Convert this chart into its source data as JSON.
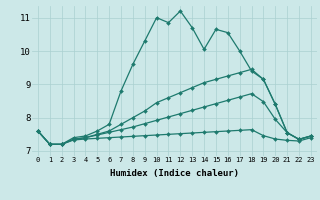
{
  "xlabel": "Humidex (Indice chaleur)",
  "background_color": "#cce8e8",
  "grid_color": "#aad0d0",
  "line_color": "#1e7a6e",
  "xlim": [
    -0.5,
    23.5
  ],
  "ylim": [
    6.85,
    11.35
  ],
  "xticks": [
    0,
    1,
    2,
    3,
    4,
    5,
    6,
    7,
    8,
    9,
    10,
    11,
    12,
    13,
    14,
    15,
    16,
    17,
    18,
    19,
    20,
    21,
    22,
    23
  ],
  "yticks": [
    7,
    8,
    9,
    10,
    11
  ],
  "line1_x": [
    0,
    1,
    2,
    3,
    4,
    5,
    6,
    7,
    8,
    9,
    10,
    11,
    12,
    13,
    14,
    15,
    16,
    17,
    18,
    19,
    20,
    21,
    22,
    23
  ],
  "line1_y": [
    7.6,
    7.2,
    7.2,
    7.4,
    7.45,
    7.6,
    7.8,
    8.8,
    9.6,
    10.3,
    11.0,
    10.85,
    11.2,
    10.7,
    10.05,
    10.65,
    10.55,
    10.0,
    9.4,
    9.15,
    8.4,
    7.55,
    7.35,
    7.45
  ],
  "line2_x": [
    0,
    1,
    2,
    3,
    4,
    5,
    6,
    7,
    8,
    9,
    10,
    11,
    12,
    13,
    14,
    15,
    16,
    17,
    18,
    19,
    20,
    21,
    22,
    23
  ],
  "line2_y": [
    7.6,
    7.2,
    7.2,
    7.35,
    7.4,
    7.5,
    7.6,
    7.8,
    8.0,
    8.2,
    8.45,
    8.6,
    8.75,
    8.9,
    9.05,
    9.15,
    9.25,
    9.35,
    9.45,
    9.15,
    8.4,
    7.55,
    7.35,
    7.45
  ],
  "line3_x": [
    0,
    1,
    2,
    3,
    4,
    5,
    6,
    7,
    8,
    9,
    10,
    11,
    12,
    13,
    14,
    15,
    16,
    17,
    18,
    19,
    20,
    21,
    22,
    23
  ],
  "line3_y": [
    7.6,
    7.2,
    7.2,
    7.35,
    7.4,
    7.48,
    7.56,
    7.64,
    7.72,
    7.82,
    7.92,
    8.02,
    8.12,
    8.22,
    8.32,
    8.42,
    8.52,
    8.62,
    8.72,
    8.48,
    7.95,
    7.55,
    7.35,
    7.45
  ],
  "line4_x": [
    0,
    1,
    2,
    3,
    4,
    5,
    6,
    7,
    8,
    9,
    10,
    11,
    12,
    13,
    14,
    15,
    16,
    17,
    18,
    19,
    20,
    21,
    22,
    23
  ],
  "line4_y": [
    7.6,
    7.2,
    7.2,
    7.33,
    7.36,
    7.38,
    7.4,
    7.42,
    7.44,
    7.46,
    7.48,
    7.5,
    7.52,
    7.54,
    7.56,
    7.58,
    7.6,
    7.62,
    7.64,
    7.46,
    7.36,
    7.32,
    7.3,
    7.4
  ]
}
